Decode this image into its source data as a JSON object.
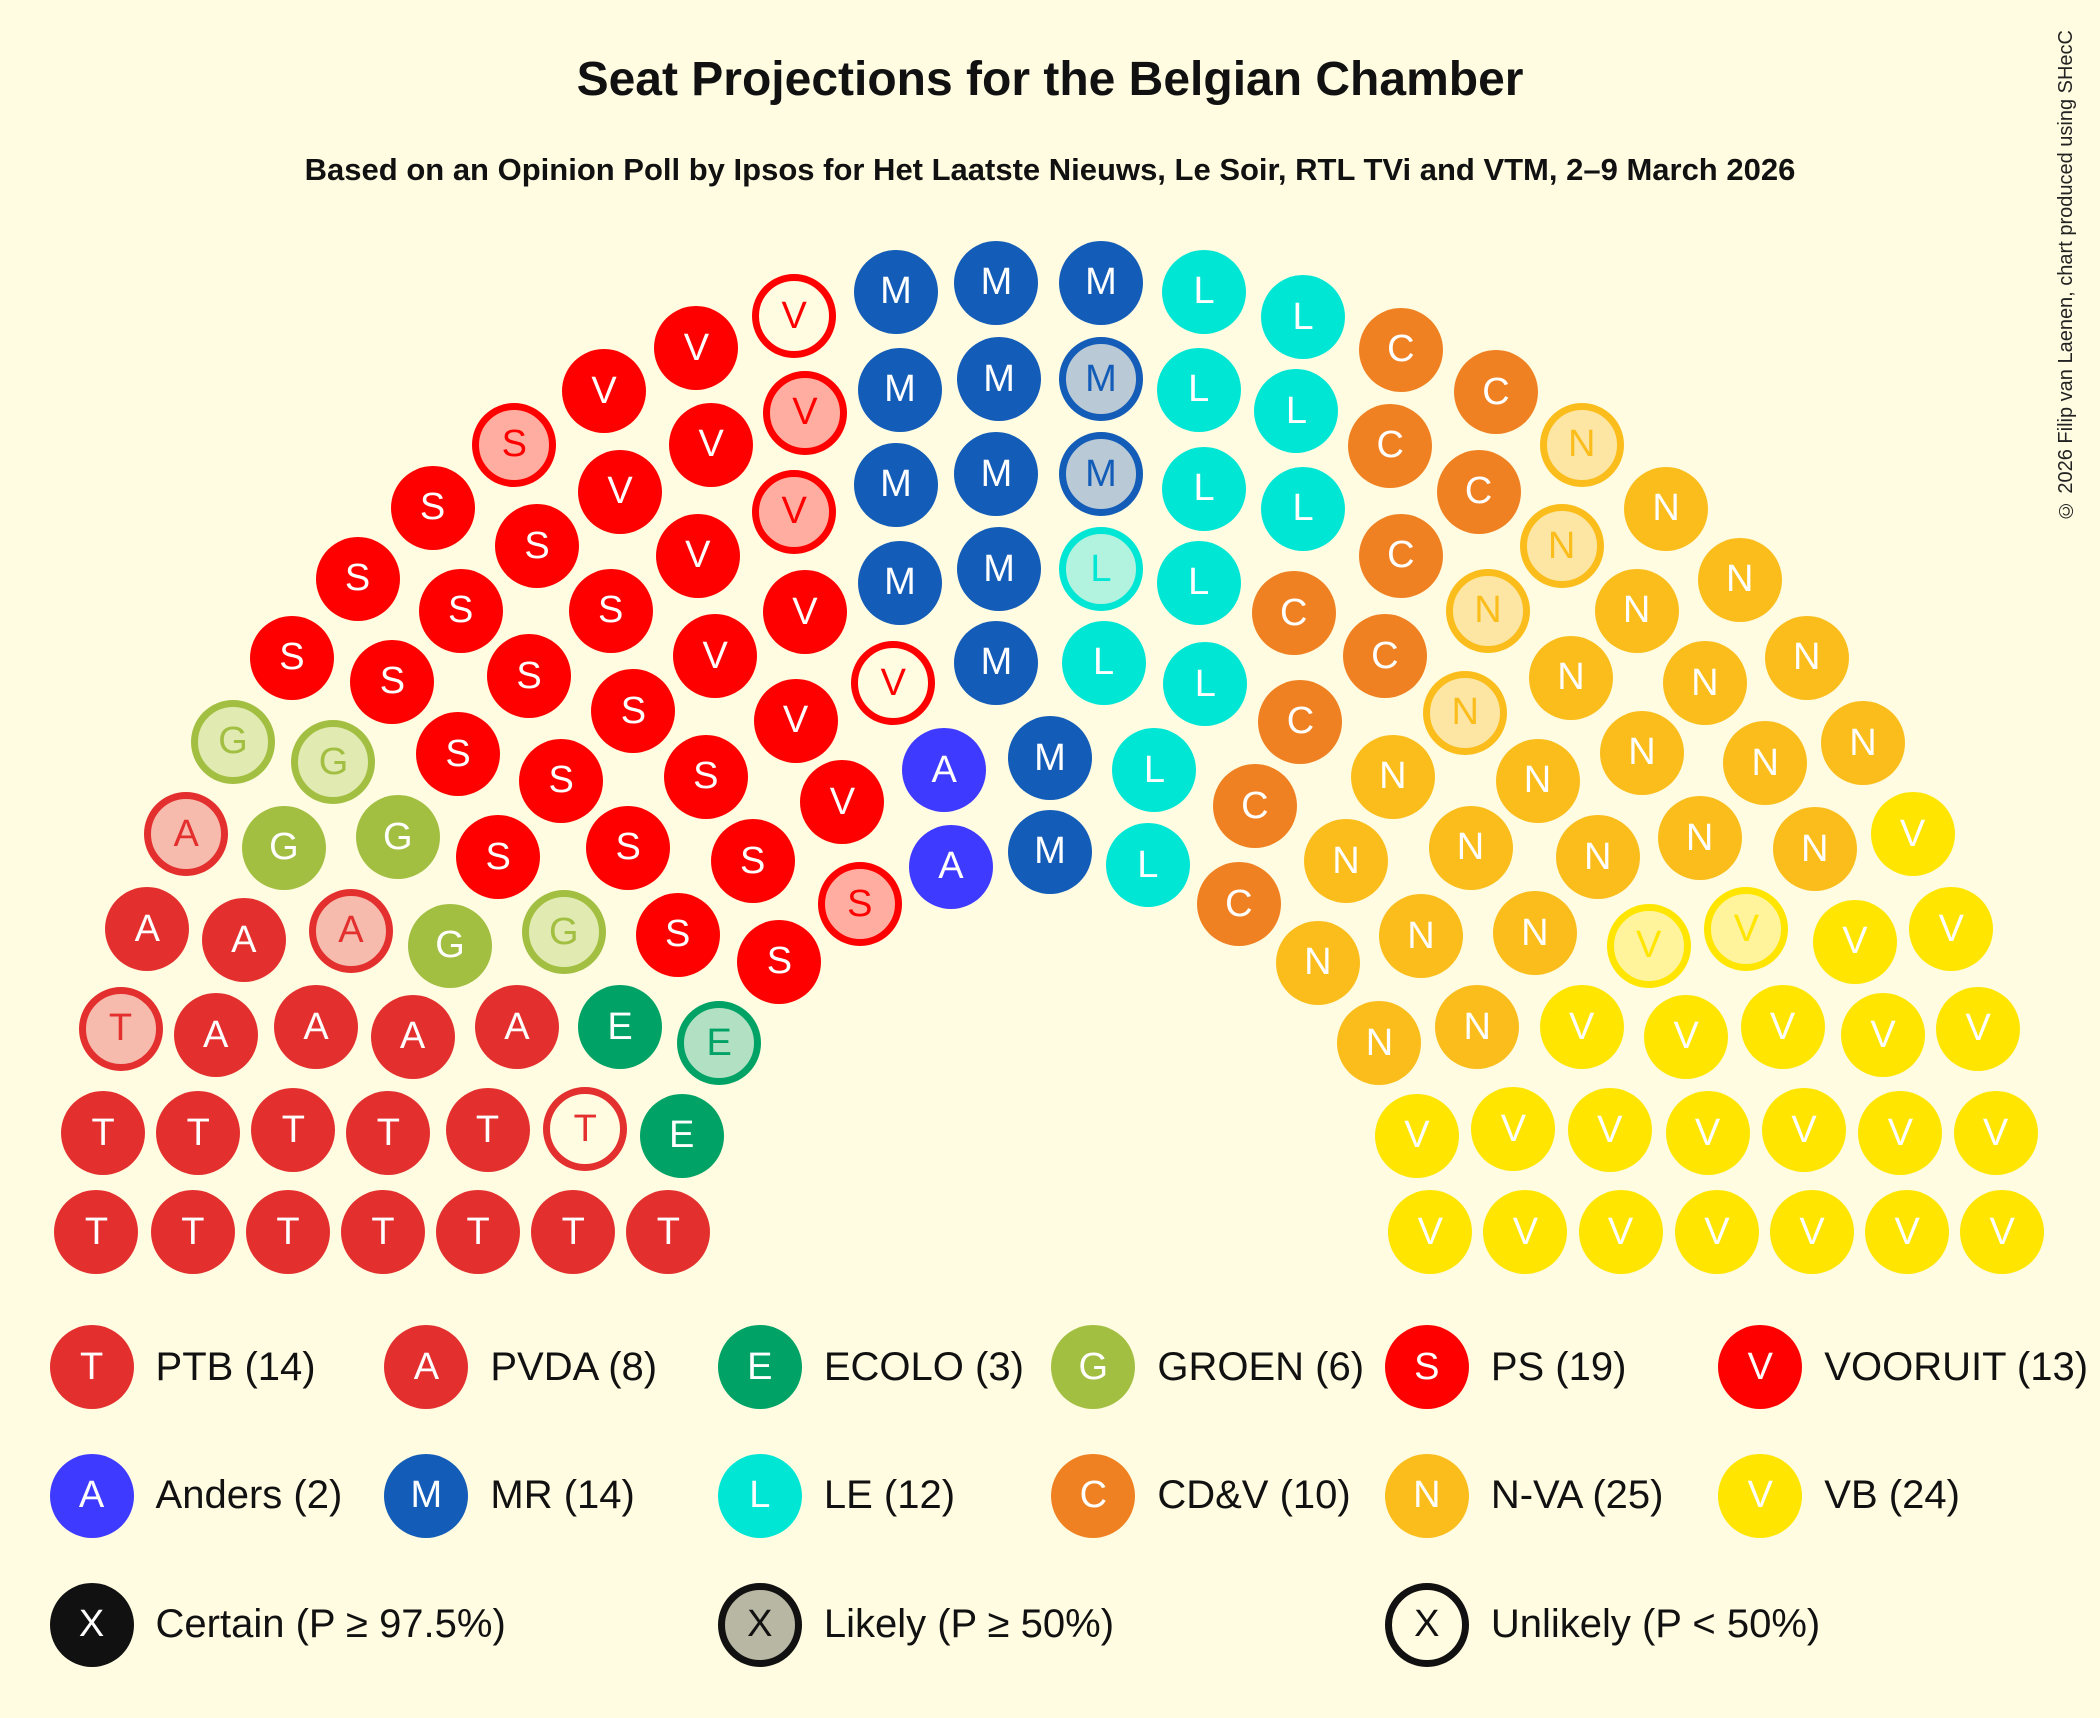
{
  "title": "Seat Projections for the Belgian Chamber",
  "subtitle": "Based on an Opinion Poll by Ipsos for Het Laatste Nieuws, Le Soir, RTL TVi and VTM, 2–9 March 2026",
  "copyright": "© 2026 Filip van Laenen, chart produced using SHecC",
  "parties": {
    "T": {
      "name": "PTB",
      "seats": 14,
      "color": "#E3302F",
      "light": "#F6BBAD"
    },
    "A": {
      "name": "PVDA",
      "seats": 8,
      "color": "#E3302F",
      "light": "#F6BBAD"
    },
    "E": {
      "name": "ECOLO",
      "seats": 3,
      "color": "#00A266",
      "light": "#B1E1C2"
    },
    "G": {
      "name": "GROEN",
      "seats": 6,
      "color": "#A2BF42",
      "light": "#E0EAB1"
    },
    "S": {
      "name": "PS",
      "seats": 19,
      "color": "#FF0000",
      "light": "#FFADA0"
    },
    "V": {
      "name": "VOORUIT",
      "seats": 13,
      "color": "#FF0000",
      "light": "#FFADA0"
    },
    "AN": {
      "name": "Anders",
      "seats": 2,
      "color": "#3F3AFF",
      "light": "#C1BEFF"
    },
    "M": {
      "name": "MR",
      "seats": 14,
      "color": "#135CB8",
      "light": "#B9CAD6"
    },
    "L": {
      "name": "LE",
      "seats": 12,
      "color": "#00E6D5",
      "light": "#B1F3DF"
    },
    "C": {
      "name": "CD&V",
      "seats": 10,
      "color": "#F08122",
      "light": "#F8CF99"
    },
    "N": {
      "name": "N-VA",
      "seats": 25,
      "color": "#FBBD1C",
      "light": "#FDE6A3"
    },
    "VB": {
      "name": "VB",
      "seats": 24,
      "color": "#FFE500",
      "light": "#FFF49B"
    }
  },
  "legend": {
    "parties": [
      {
        "letter": "T",
        "key": "T",
        "label": "PTB (14)"
      },
      {
        "letter": "A",
        "key": "A",
        "label": "PVDA (8)"
      },
      {
        "letter": "E",
        "key": "E",
        "label": "ECOLO (3)"
      },
      {
        "letter": "G",
        "key": "G",
        "label": "GROEN (6)"
      },
      {
        "letter": "S",
        "key": "S",
        "label": "PS (19)"
      },
      {
        "letter": "V",
        "key": "V",
        "label": "VOORUIT (13)"
      },
      {
        "letter": "A",
        "key": "AN",
        "label": "Anders (2)"
      },
      {
        "letter": "M",
        "key": "M",
        "label": "MR (14)"
      },
      {
        "letter": "L",
        "key": "L",
        "label": "LE (12)"
      },
      {
        "letter": "C",
        "key": "C",
        "label": "CD&V (10)"
      },
      {
        "letter": "N",
        "key": "N",
        "label": "N-VA (25)"
      },
      {
        "letter": "V",
        "key": "VB",
        "label": "VB (24)"
      }
    ],
    "certainty": [
      {
        "letter": "X",
        "style": "certain",
        "label": "Certain (P ≥ 97.5%)"
      },
      {
        "letter": "X",
        "style": "likely",
        "label": "Likely (P ≥ 50%)"
      },
      {
        "letter": "X",
        "style": "unlikely",
        "label": "Unlikely (P < 50%)"
      }
    ]
  },
  "chart_data": {
    "type": "parliament-hemicycle",
    "title": "Seat Projections for the Belgian Chamber",
    "subtitle": "Based on an Opinion Poll by Ipsos for Het Laatste Nieuws, Le Soir, RTL TVi and VTM, 2–9 March 2026",
    "total_seats": 150,
    "categories": [
      "PTB",
      "PVDA",
      "ECOLO",
      "GROEN",
      "PS",
      "VOORUIT",
      "Anders",
      "MR",
      "LE",
      "CD&V",
      "N-VA",
      "VB"
    ],
    "values": [
      14,
      8,
      3,
      6,
      19,
      13,
      2,
      14,
      12,
      10,
      25,
      24
    ],
    "certainty_legend": [
      "Certain (P ≥ 97.5%)",
      "Likely (P ≥ 50%)",
      "Unlikely (P < 50%)"
    ],
    "seat_status_counts": {
      "PTB": {
        "certain": 12,
        "likely": 1,
        "unlikely": 1
      },
      "PVDA": {
        "certain": 6,
        "likely": 2,
        "unlikely": 0
      },
      "ECOLO": {
        "certain": 2,
        "likely": 1,
        "unlikely": 0
      },
      "GROEN": {
        "certain": 3,
        "likely": 3,
        "unlikely": 0
      },
      "PS": {
        "certain": 17,
        "likely": 2,
        "unlikely": 0
      },
      "VOORUIT": {
        "certain": 9,
        "likely": 2,
        "unlikely": 2
      },
      "Anders": {
        "certain": 2,
        "likely": 0,
        "unlikely": 0
      },
      "MR": {
        "certain": 12,
        "likely": 2,
        "unlikely": 0
      },
      "LE": {
        "certain": 11,
        "likely": 1,
        "unlikely": 0
      },
      "CD&V": {
        "certain": 10,
        "likely": 0,
        "unlikely": 0
      },
      "N-VA": {
        "certain": 21,
        "likely": 4,
        "unlikely": 0
      },
      "VB": {
        "certain": 22,
        "likely": 2,
        "unlikely": 0
      }
    }
  },
  "seats": [
    [
      "T",
      72,
      920,
      "c"
    ],
    [
      "T",
      144,
      920,
      "c"
    ],
    [
      "T",
      215,
      920,
      "c"
    ],
    [
      "T",
      286,
      920,
      "c"
    ],
    [
      "T",
      357,
      920,
      "c"
    ],
    [
      "T",
      428,
      920,
      "c"
    ],
    [
      "T",
      499,
      920,
      "c"
    ],
    [
      "T",
      77,
      846,
      "c"
    ],
    [
      "T",
      148,
      846,
      "c"
    ],
    [
      "T",
      219,
      844,
      "c"
    ],
    [
      "T",
      290,
      846,
      "c"
    ],
    [
      "T",
      364,
      844,
      "c"
    ],
    [
      "T",
      437,
      843,
      "u"
    ],
    [
      "E",
      509,
      848,
      "c"
    ],
    [
      "T",
      90,
      768,
      "l"
    ],
    [
      "A",
      161,
      773,
      "c"
    ],
    [
      "A",
      236,
      767,
      "c"
    ],
    [
      "A",
      308,
      774,
      "c"
    ],
    [
      "A",
      386,
      767,
      "c"
    ],
    [
      "E",
      463,
      767,
      "c"
    ],
    [
      "E",
      537,
      779,
      "l"
    ],
    [
      "A",
      110,
      694,
      "c"
    ],
    [
      "A",
      182,
      702,
      "c"
    ],
    [
      "A",
      262,
      695,
      "l"
    ],
    [
      "G",
      336,
      706,
      "c"
    ],
    [
      "G",
      421,
      696,
      "l"
    ],
    [
      "S",
      506,
      698,
      "c"
    ],
    [
      "S",
      582,
      718,
      "c"
    ],
    [
      "A",
      139,
      623,
      "l"
    ],
    [
      "G",
      212,
      633,
      "c"
    ],
    [
      "G",
      297,
      625,
      "c"
    ],
    [
      "S",
      372,
      640,
      "c"
    ],
    [
      "S",
      469,
      633,
      "c"
    ],
    [
      "S",
      562,
      643,
      "c"
    ],
    [
      "S",
      642,
      675,
      "l"
    ],
    [
      "G",
      174,
      554,
      "l"
    ],
    [
      "G",
      249,
      569,
      "l"
    ],
    [
      "S",
      342,
      563,
      "c"
    ],
    [
      "S",
      419,
      583,
      "c"
    ],
    [
      "S",
      527,
      580,
      "c"
    ],
    [
      "V",
      629,
      599,
      "c"
    ],
    [
      "S",
      218,
      491,
      "c"
    ],
    [
      "S",
      293,
      509,
      "c"
    ],
    [
      "S",
      395,
      505,
      "c"
    ],
    [
      "S",
      473,
      531,
      "c"
    ],
    [
      "V",
      594,
      538,
      "c"
    ],
    [
      "S",
      267,
      432,
      "c"
    ],
    [
      "S",
      344,
      456,
      "c"
    ],
    [
      "S",
      456,
      456,
      "c"
    ],
    [
      "V",
      534,
      490,
      "c"
    ],
    [
      "V",
      667,
      510,
      "u"
    ],
    [
      "S",
      323,
      379,
      "c"
    ],
    [
      "S",
      401,
      408,
      "c"
    ],
    [
      "V",
      521,
      415,
      "c"
    ],
    [
      "V",
      601,
      457,
      "c"
    ],
    [
      "S",
      384,
      332,
      "l"
    ],
    [
      "V",
      463,
      367,
      "c"
    ],
    [
      "V",
      531,
      332,
      "c"
    ],
    [
      "V",
      593,
      382,
      "l"
    ],
    [
      "V",
      451,
      292,
      "c"
    ],
    [
      "V",
      520,
      260,
      "c"
    ],
    [
      "V",
      601,
      308,
      "l"
    ],
    [
      "V",
      593,
      236,
      "u"
    ],
    [
      "AN",
      705,
      575,
      "c"
    ],
    [
      "AN",
      710,
      647,
      "c"
    ],
    [
      "M",
      669,
      218,
      "c"
    ],
    [
      "M",
      744,
      211,
      "c"
    ],
    [
      "M",
      822,
      211,
      "c"
    ],
    [
      "M",
      672,
      291,
      "c"
    ],
    [
      "M",
      746,
      283,
      "c"
    ],
    [
      "M",
      822,
      283,
      "l"
    ],
    [
      "M",
      669,
      362,
      "c"
    ],
    [
      "M",
      744,
      354,
      "c"
    ],
    [
      "M",
      822,
      354,
      "l"
    ],
    [
      "M",
      672,
      435,
      "c"
    ],
    [
      "M",
      746,
      425,
      "c"
    ],
    [
      "M",
      744,
      495,
      "c"
    ],
    [
      "M",
      784,
      566,
      "c"
    ],
    [
      "M",
      784,
      636,
      "c"
    ],
    [
      "L",
      822,
      425,
      "l"
    ],
    [
      "L",
      824,
      495,
      "c"
    ],
    [
      "L",
      862,
      575,
      "c"
    ],
    [
      "L",
      857,
      646,
      "c"
    ],
    [
      "L",
      899,
      218,
      "c"
    ],
    [
      "L",
      973,
      237,
      "c"
    ],
    [
      "L",
      895,
      291,
      "c"
    ],
    [
      "L",
      968,
      307,
      "c"
    ],
    [
      "L",
      899,
      365,
      "c"
    ],
    [
      "L",
      973,
      380,
      "c"
    ],
    [
      "L",
      895,
      435,
      "c"
    ],
    [
      "L",
      900,
      511,
      "c"
    ],
    [
      "C",
      1046,
      261,
      "c"
    ],
    [
      "C",
      1117,
      293,
      "c"
    ],
    [
      "C",
      1038,
      333,
      "c"
    ],
    [
      "C",
      1104,
      367,
      "c"
    ],
    [
      "C",
      1046,
      415,
      "c"
    ],
    [
      "C",
      966,
      458,
      "c"
    ],
    [
      "C",
      1034,
      490,
      "c"
    ],
    [
      "C",
      971,
      539,
      "c"
    ],
    [
      "C",
      937,
      602,
      "c"
    ],
    [
      "C",
      925,
      675,
      "c"
    ],
    [
      "N",
      1181,
      332,
      "l"
    ],
    [
      "N",
      1244,
      380,
      "c"
    ],
    [
      "N",
      1166,
      408,
      "l"
    ],
    [
      "N",
      1299,
      433,
      "c"
    ],
    [
      "N",
      1111,
      456,
      "l"
    ],
    [
      "N",
      1222,
      456,
      "c"
    ],
    [
      "N",
      1349,
      491,
      "c"
    ],
    [
      "N",
      1173,
      506,
      "c"
    ],
    [
      "N",
      1094,
      532,
      "l"
    ],
    [
      "N",
      1273,
      510,
      "c"
    ],
    [
      "N",
      1391,
      555,
      "c"
    ],
    [
      "N",
      1226,
      562,
      "c"
    ],
    [
      "N",
      1318,
      570,
      "c"
    ],
    [
      "N",
      1148,
      583,
      "c"
    ],
    [
      "N",
      1040,
      580,
      "c"
    ],
    [
      "N",
      1269,
      626,
      "c"
    ],
    [
      "N",
      1355,
      634,
      "c"
    ],
    [
      "N",
      1098,
      633,
      "c"
    ],
    [
      "N",
      1193,
      640,
      "c"
    ],
    [
      "N",
      1005,
      643,
      "c"
    ],
    [
      "N",
      1146,
      697,
      "c"
    ],
    [
      "N",
      1061,
      699,
      "c"
    ],
    [
      "N",
      984,
      719,
      "c"
    ],
    [
      "N",
      1103,
      767,
      "c"
    ],
    [
      "N",
      1030,
      779,
      "c"
    ],
    [
      "VB",
      1428,
      623,
      "c"
    ],
    [
      "VB",
      1457,
      694,
      "c"
    ],
    [
      "VB",
      1385,
      703,
      "c"
    ],
    [
      "VB",
      1304,
      694,
      "l"
    ],
    [
      "VB",
      1231,
      706,
      "l"
    ],
    [
      "VB",
      1477,
      768,
      "c"
    ],
    [
      "VB",
      1406,
      773,
      "c"
    ],
    [
      "VB",
      1331,
      767,
      "c"
    ],
    [
      "VB",
      1259,
      774,
      "c"
    ],
    [
      "VB",
      1181,
      767,
      "c"
    ],
    [
      "VB",
      1490,
      846,
      "c"
    ],
    [
      "VB",
      1419,
      846,
      "c"
    ],
    [
      "VB",
      1347,
      844,
      "c"
    ],
    [
      "VB",
      1275,
      846,
      "c"
    ],
    [
      "VB",
      1202,
      844,
      "c"
    ],
    [
      "VB",
      1130,
      843,
      "c"
    ],
    [
      "VB",
      1058,
      848,
      "c"
    ],
    [
      "VB",
      1495,
      920,
      "c"
    ],
    [
      "VB",
      1424,
      920,
      "c"
    ],
    [
      "VB",
      1353,
      920,
      "c"
    ],
    [
      "VB",
      1282,
      920,
      "c"
    ],
    [
      "VB",
      1210,
      920,
      "c"
    ],
    [
      "VB",
      1139,
      920,
      "c"
    ],
    [
      "VB",
      1068,
      920,
      "c"
    ]
  ]
}
